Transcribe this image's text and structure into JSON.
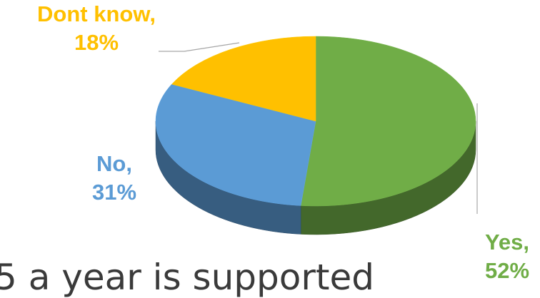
{
  "chart_data": {
    "type": "pie",
    "style": "3d",
    "slices": [
      {
        "label": "Yes",
        "value": 52,
        "display": "Yes,\n52%",
        "color": "#70AD47"
      },
      {
        "label": "Dont know",
        "value": 18,
        "display": "Dont know,\n18%",
        "color": "#FFC000"
      },
      {
        "label": "No",
        "value": 31,
        "display": "No,\n31%",
        "color": "#5B9BD5"
      }
    ],
    "unit": "%",
    "legend": "none"
  },
  "caption": "5 a year is supported"
}
